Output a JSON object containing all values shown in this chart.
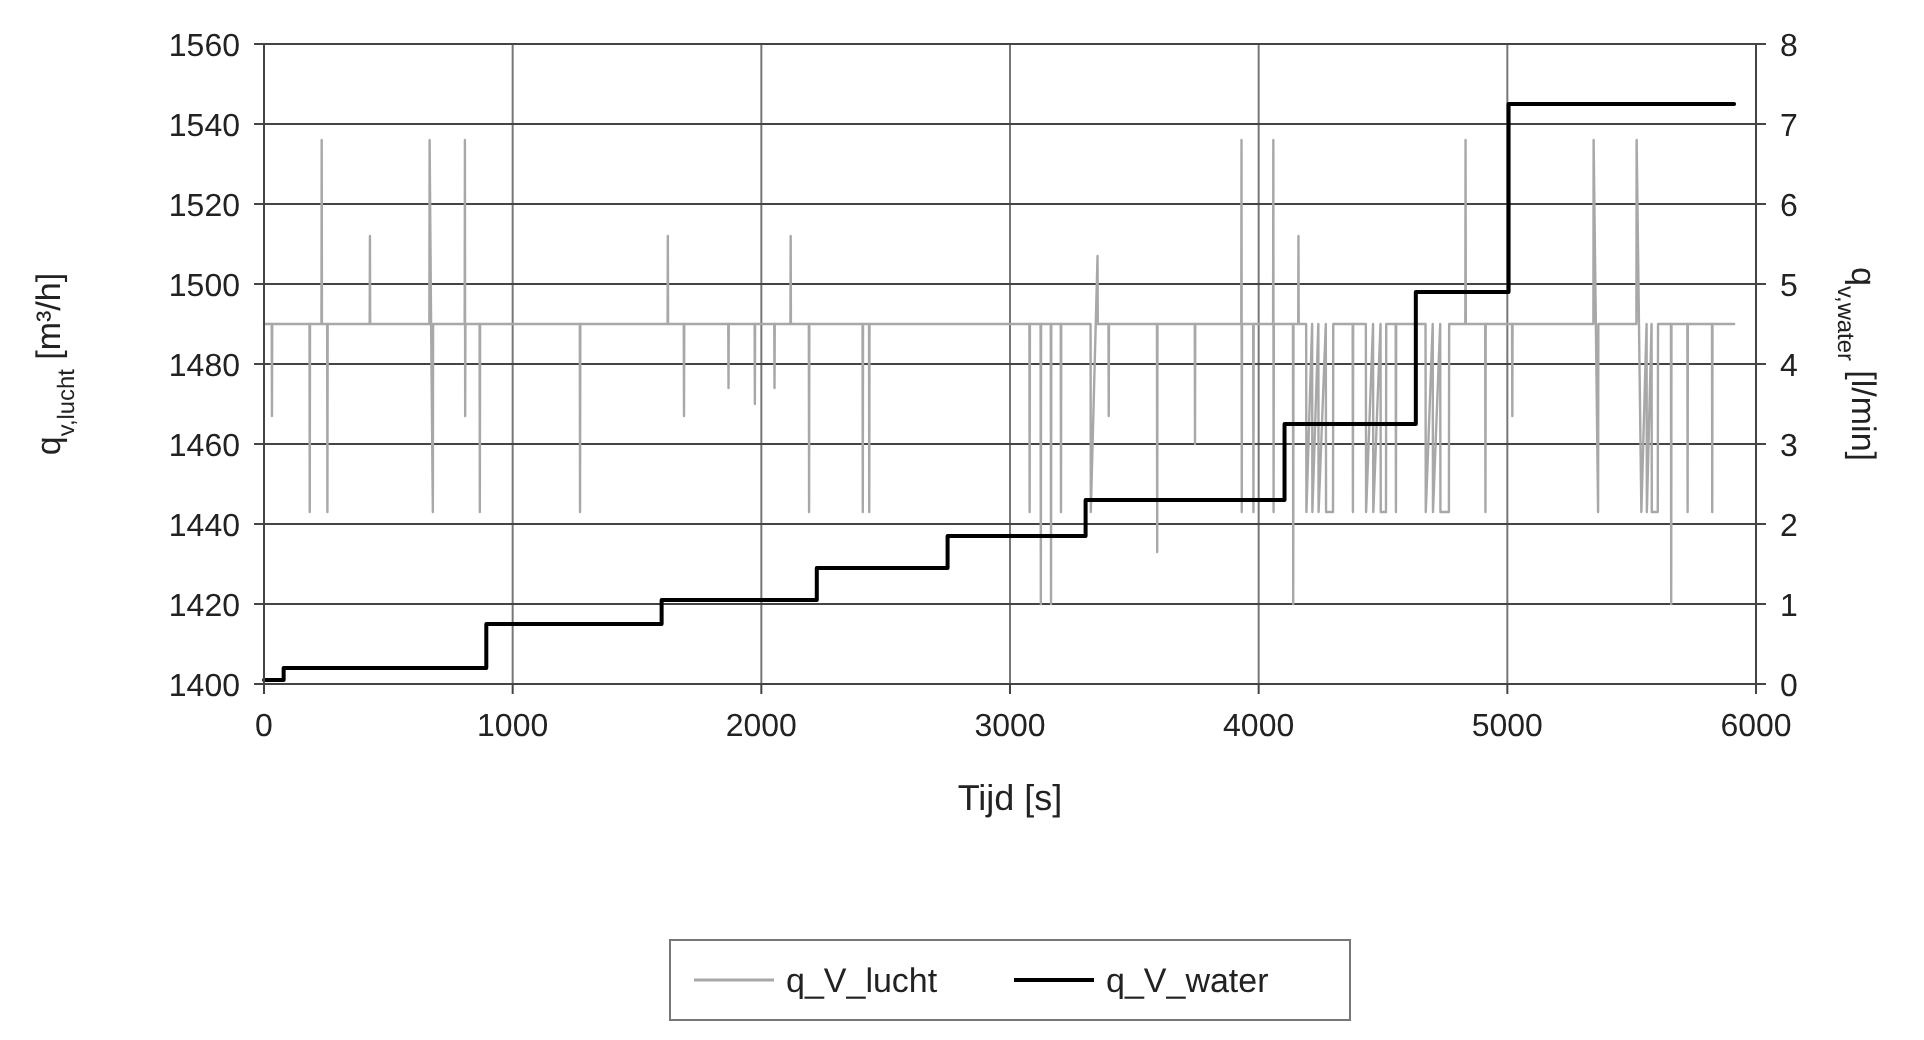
{
  "chart_data": {
    "type": "line",
    "xlabel": "Tijd [s]",
    "ylabel": "q$_{v,lucht}$ [m³/h]",
    "y2label": "q$_{v,water}$ [l/min]",
    "xlim": [
      0,
      6000
    ],
    "xticks": [
      0,
      1000,
      2000,
      3000,
      4000,
      5000,
      6000
    ],
    "ylim": [
      1400,
      1560
    ],
    "yticks": [
      1400,
      1420,
      1440,
      1460,
      1480,
      1500,
      1520,
      1540,
      1560
    ],
    "y2lim": [
      0,
      8
    ],
    "y2ticks": [
      0,
      1,
      2,
      3,
      4,
      5,
      6,
      7,
      8
    ],
    "grid": true,
    "legend": "bottom",
    "series": [
      {
        "name": "q_V_lucht",
        "color": "#a8a8a8",
        "x": [
          0,
          31,
          32,
          33,
          183,
          184,
          185,
          231,
          232,
          233,
          254,
          255,
          256,
          425,
          426,
          427,
          665,
          666,
          672,
          679,
          680,
          807,
          808,
          809,
          810,
          867,
          868,
          869,
          1270,
          1271,
          1272,
          1623,
          1624,
          1625,
          1688,
          1689,
          1690,
          1867,
          1868,
          1869,
          1973,
          1974,
          1975,
          2052,
          2053,
          2054,
          2117,
          2118,
          2119,
          2191,
          2192,
          2193,
          2407,
          2408,
          2409,
          2433,
          2434,
          2435,
          3078,
          3079,
          3080,
          3123,
          3124,
          3125,
          3164,
          3165,
          3166,
          3204,
          3205,
          3206,
          3324,
          3325,
          3352,
          3353,
          3396,
          3397,
          3398,
          3591,
          3592,
          3593,
          3743,
          3744,
          3745,
          3930,
          3931,
          3932,
          3933,
          3978,
          3979,
          3980,
          4058,
          4059,
          4060,
          4061,
          4138,
          4139,
          4140,
          4159,
          4160,
          4161,
          4191,
          4192,
          4215,
          4216,
          4240,
          4241,
          4270,
          4271,
          4299,
          4300,
          4378,
          4379,
          4380,
          4431,
          4432,
          4460,
          4461,
          4490,
          4491,
          4512,
          4513,
          4551,
          4552,
          4553,
          4671,
          4672,
          4700,
          4701,
          4730,
          4731,
          4765,
          4766,
          4831,
          4832,
          4833,
          4911,
          4912,
          4913,
          5019,
          5020,
          5021,
          5346,
          5347,
          5365,
          5366,
          5519,
          5520,
          5539,
          5560,
          5561,
          5580,
          5581,
          5605,
          5606,
          5658,
          5659,
          5660,
          5724,
          5725,
          5726,
          5823,
          5824,
          5825,
          5912
        ],
        "values": [
          1490,
          1490,
          1467,
          1490,
          1490,
          1443,
          1490,
          1490,
          1536,
          1490,
          1490,
          1443,
          1490,
          1490,
          1512,
          1490,
          1490,
          1536,
          1490,
          1443,
          1490,
          1490,
          1536,
          1467,
          1490,
          1490,
          1443,
          1490,
          1490,
          1443,
          1490,
          1490,
          1512,
          1490,
          1490,
          1467,
          1490,
          1490,
          1474,
          1490,
          1490,
          1470,
          1490,
          1490,
          1474,
          1490,
          1490,
          1512,
          1490,
          1490,
          1443,
          1490,
          1490,
          1443,
          1490,
          1490,
          1443,
          1490,
          1490,
          1443,
          1490,
          1490,
          1420,
          1490,
          1490,
          1420,
          1490,
          1490,
          1443,
          1490,
          1490,
          1443,
          1507,
          1490,
          1490,
          1467,
          1490,
          1490,
          1433,
          1490,
          1490,
          1460,
          1490,
          1490,
          1536,
          1443,
          1490,
          1490,
          1443,
          1490,
          1490,
          1536,
          1443,
          1490,
          1490,
          1420,
          1490,
          1490,
          1512,
          1490,
          1490,
          1443,
          1490,
          1443,
          1490,
          1443,
          1490,
          1443,
          1443,
          1490,
          1490,
          1443,
          1490,
          1490,
          1443,
          1490,
          1443,
          1490,
          1443,
          1443,
          1490,
          1490,
          1443,
          1490,
          1490,
          1443,
          1490,
          1443,
          1490,
          1443,
          1443,
          1490,
          1490,
          1536,
          1490,
          1490,
          1443,
          1490,
          1490,
          1467,
          1490,
          1490,
          1536,
          1443,
          1490,
          1490,
          1536,
          1443,
          1490,
          1443,
          1490,
          1443,
          1443,
          1490,
          1490,
          1420,
          1490,
          1490,
          1443,
          1490,
          1490,
          1443,
          1490,
          1490
        ]
      },
      {
        "name": "q_V_water",
        "type": "step",
        "axis": "y2",
        "color": "#000000",
        "x": [
          0,
          79,
          894,
          1599,
          2223,
          2749,
          3304,
          4104,
          4632,
          5005,
          5912
        ],
        "values": [
          0.05,
          0.2,
          0.75,
          1.05,
          1.45,
          1.85,
          2.3,
          3.25,
          4.9,
          7.25,
          7.25
        ]
      }
    ]
  }
}
